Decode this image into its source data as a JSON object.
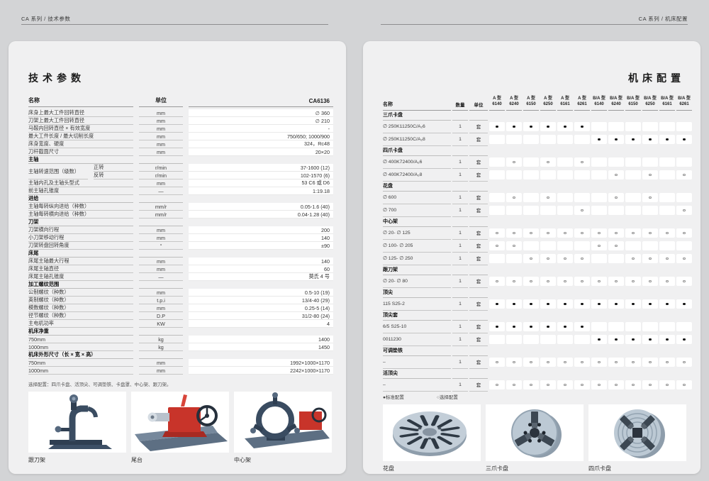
{
  "top_nav": {
    "left_breadcrumb": "CA 系列 / 技术参数",
    "right_breadcrumb": "CA 系列 / 机床配置"
  },
  "left_page": {
    "title": "技术参数",
    "table": {
      "col_name": "名称",
      "col_unit": "单位",
      "col_value": "CA6136",
      "rows": [
        {
          "t": "d",
          "name": "床身上最大工件回转直径",
          "unit": "mm",
          "value": "∅ 360"
        },
        {
          "t": "d",
          "name": "刀架上最大工件回转直径",
          "unit": "mm",
          "value": "∅ 210"
        },
        {
          "t": "d",
          "name": "马鞍内回转直径 × 有效宽度",
          "unit": "mm",
          "value": "-"
        },
        {
          "t": "d",
          "name": "最大工件长度 / 最大切削长度",
          "unit": "mm",
          "value": "750/650; 1000/900"
        },
        {
          "t": "d",
          "name": "床身宽度、硬度",
          "unit": "mm",
          "value": "324，Rc48"
        },
        {
          "t": "d",
          "name": "刀杆截面尺寸",
          "unit": "mm",
          "value": "20×20"
        },
        {
          "t": "s",
          "label": "主轴"
        },
        {
          "t": "g",
          "label": "主轴转速范围（级数）",
          "subrows": [
            {
              "sub": "正转",
              "unit": "r/min",
              "value": "37-1600 (12)"
            },
            {
              "sub": "反转",
              "unit": "r/min",
              "value": "102-1570 (6)"
            }
          ]
        },
        {
          "t": "d",
          "name": "主轴内孔及主轴头型式",
          "unit": "mm",
          "value": "53  C6 或 D6"
        },
        {
          "t": "d",
          "name": "前主轴孔锥度",
          "unit": "—",
          "value": "1:19.18"
        },
        {
          "t": "s",
          "label": "进给"
        },
        {
          "t": "d",
          "name": "主轴每转纵向进给（种数）",
          "unit": "mm/r",
          "value": "0.05-1.6 (40)"
        },
        {
          "t": "d",
          "name": "主轴每转横向进给（种数）",
          "unit": "mm/r",
          "value": "0.04-1.28 (40)"
        },
        {
          "t": "s",
          "label": "刀架"
        },
        {
          "t": "d",
          "name": "刀架横向行程",
          "unit": "mm",
          "value": "200"
        },
        {
          "t": "d",
          "name": "小刀架移动行程",
          "unit": "mm",
          "value": "140"
        },
        {
          "t": "d",
          "name": "刀架转盘回转角度",
          "unit": "°",
          "value": "±90"
        },
        {
          "t": "s",
          "label": "床尾"
        },
        {
          "t": "d",
          "name": "床尾主轴最大行程",
          "unit": "mm",
          "value": "140"
        },
        {
          "t": "d",
          "name": "床尾主轴直径",
          "unit": "mm",
          "value": "60"
        },
        {
          "t": "d",
          "name": "床尾主轴孔锥度",
          "unit": "—",
          "value": "莫氏 4 号"
        },
        {
          "t": "s",
          "label": "加工螺纹范围"
        },
        {
          "t": "d",
          "name": "公制螺纹（种数）",
          "unit": "mm",
          "value": "0.5-10 (19)"
        },
        {
          "t": "d",
          "name": "英制螺纹（种数）",
          "unit": "t.p.i",
          "value": "13/4-40 (29)"
        },
        {
          "t": "d",
          "name": "模数螺纹（种数）",
          "unit": "mm",
          "value": "0.25-5 (14)"
        },
        {
          "t": "d",
          "name": "径节螺纹（种数）",
          "unit": "D.P",
          "value": "31/2-80 (24)"
        },
        {
          "t": "d",
          "name": "主电机功率",
          "unit": "KW",
          "value": "4"
        },
        {
          "t": "s",
          "label": "机床净重"
        },
        {
          "t": "d",
          "name": "750mm",
          "unit": "kg",
          "value": "1400"
        },
        {
          "t": "d",
          "name": "1000mm",
          "unit": "kg",
          "value": "1450"
        },
        {
          "t": "s",
          "label": "机床外形尺寸（长 × 宽 × 高）"
        },
        {
          "t": "d",
          "name": "750mm",
          "unit": "mm",
          "value": "1992×1000×1170"
        },
        {
          "t": "d",
          "name": "1000mm",
          "unit": "mm",
          "value": "2242×1000×1170"
        }
      ]
    },
    "footnote": "选择配置：四爪卡盘、活顶尖、可调垫铁、卡盘罩、中心架、跟刀架。",
    "photos": [
      {
        "caption": "跟刀架"
      },
      {
        "caption": "尾台"
      },
      {
        "caption": "中心架"
      }
    ]
  },
  "right_page": {
    "title": "机床配置",
    "table": {
      "col_name": "名称",
      "col_qty": "数量",
      "col_unit": "单位",
      "models": [
        {
          "type": "A 型",
          "code": "6140"
        },
        {
          "type": "A 型",
          "code": "6240"
        },
        {
          "type": "A 型",
          "code": "6150"
        },
        {
          "type": "A 型",
          "code": "6250"
        },
        {
          "type": "A 型",
          "code": "6161"
        },
        {
          "type": "A 型",
          "code": "6261"
        },
        {
          "type": "B/A 型",
          "code": "6140"
        },
        {
          "type": "B/A 型",
          "code": "6240"
        },
        {
          "type": "B/A 型",
          "code": "6150"
        },
        {
          "type": "B/A 型",
          "code": "6250"
        },
        {
          "type": "B/A 型",
          "code": "6161"
        },
        {
          "type": "B/A 型",
          "code": "6261"
        }
      ],
      "rows": [
        {
          "t": "s",
          "label": "三爪卡盘"
        },
        {
          "t": "d",
          "name": "∅ 250K11250C/A₂6",
          "qty": "1",
          "unit": "套",
          "marks": [
            "●",
            "●",
            "●",
            "●",
            "●",
            "●",
            "",
            "",
            "",
            "",
            "",
            ""
          ]
        },
        {
          "t": "d",
          "name": "∅ 250K11250C/A₂8",
          "qty": "1",
          "unit": "套",
          "marks": [
            "",
            "",
            "",
            "",
            "",
            "",
            "●",
            "●",
            "●",
            "●",
            "●",
            "●"
          ]
        },
        {
          "t": "s",
          "label": "四爪卡盘"
        },
        {
          "t": "d",
          "name": "∅ 400K72400/A₂6",
          "qty": "1",
          "unit": "套",
          "marks": [
            "",
            "○",
            "",
            "○",
            "",
            "○",
            "",
            "",
            "",
            "",
            "",
            ""
          ]
        },
        {
          "t": "d",
          "name": "∅ 400K72400/A₂8",
          "qty": "1",
          "unit": "套",
          "marks": [
            "",
            "",
            "",
            "",
            "",
            "",
            "",
            "○",
            "",
            "○",
            "",
            "○"
          ]
        },
        {
          "t": "s",
          "label": "花盘"
        },
        {
          "t": "d",
          "name": "∅ 600",
          "qty": "1",
          "unit": "套",
          "marks": [
            "",
            "○",
            "",
            "○",
            "",
            "",
            "",
            "○",
            "",
            "○",
            "",
            ""
          ]
        },
        {
          "t": "d",
          "name": "∅ 700",
          "qty": "1",
          "unit": "套",
          "marks": [
            "",
            "",
            "",
            "",
            "",
            "○",
            "",
            "",
            "",
            "",
            "",
            "○"
          ]
        },
        {
          "t": "s",
          "label": "中心架"
        },
        {
          "t": "d",
          "name": "∅ 20- ∅ 125",
          "qty": "1",
          "unit": "套",
          "marks": [
            "○",
            "○",
            "○",
            "○",
            "○",
            "○",
            "○",
            "○",
            "○",
            "○",
            "○",
            "○"
          ]
        },
        {
          "t": "d",
          "name": "∅ 100- ∅ 205",
          "qty": "1",
          "unit": "套",
          "marks": [
            "○",
            "○",
            "",
            "",
            "",
            "",
            "○",
            "○",
            "",
            "",
            "",
            ""
          ]
        },
        {
          "t": "d",
          "name": "∅ 125- ∅ 250",
          "qty": "1",
          "unit": "套",
          "marks": [
            "",
            "",
            "○",
            "○",
            "○",
            "○",
            "",
            "",
            "○",
            "○",
            "○",
            "○"
          ]
        },
        {
          "t": "s",
          "label": "跟刀架"
        },
        {
          "t": "d",
          "name": "∅ 20- ∅ 80",
          "qty": "1",
          "unit": "套",
          "marks": [
            "○",
            "○",
            "○",
            "○",
            "○",
            "○",
            "○",
            "○",
            "○",
            "○",
            "○",
            "○"
          ]
        },
        {
          "t": "s",
          "label": "顶尖"
        },
        {
          "t": "d",
          "name": "115 S25-2",
          "qty": "1",
          "unit": "套",
          "marks": [
            "●",
            "●",
            "●",
            "●",
            "●",
            "●",
            "●",
            "●",
            "●",
            "●",
            "●",
            "●"
          ]
        },
        {
          "t": "s",
          "label": "顶尖套"
        },
        {
          "t": "d",
          "name": "6/5 S25-10",
          "qty": "1",
          "unit": "套",
          "marks": [
            "●",
            "●",
            "●",
            "●",
            "●",
            "●",
            "",
            "",
            "",
            "",
            "",
            ""
          ]
        },
        {
          "t": "d",
          "name": "0011230",
          "qty": "1",
          "unit": "套",
          "marks": [
            "",
            "",
            "",
            "",
            "",
            "",
            "●",
            "●",
            "●",
            "●",
            "●",
            "●"
          ]
        },
        {
          "t": "s",
          "label": "可调垫铁"
        },
        {
          "t": "d",
          "name": "–",
          "qty": "1",
          "unit": "套",
          "marks": [
            "○",
            "○",
            "○",
            "○",
            "○",
            "○",
            "○",
            "○",
            "○",
            "○",
            "○",
            "○"
          ]
        },
        {
          "t": "s",
          "label": "活顶尖"
        },
        {
          "t": "d",
          "name": "–",
          "qty": "1",
          "unit": "套",
          "marks": [
            "○",
            "○",
            "○",
            "○",
            "○",
            "○",
            "○",
            "○",
            "○",
            "○",
            "○",
            "○"
          ]
        }
      ]
    },
    "legend": {
      "standard": "●标准配置",
      "optional": "○选择配置"
    },
    "photos": [
      {
        "caption": "花盘"
      },
      {
        "caption": "三爪卡盘"
      },
      {
        "caption": "四爪卡盘"
      }
    ]
  }
}
